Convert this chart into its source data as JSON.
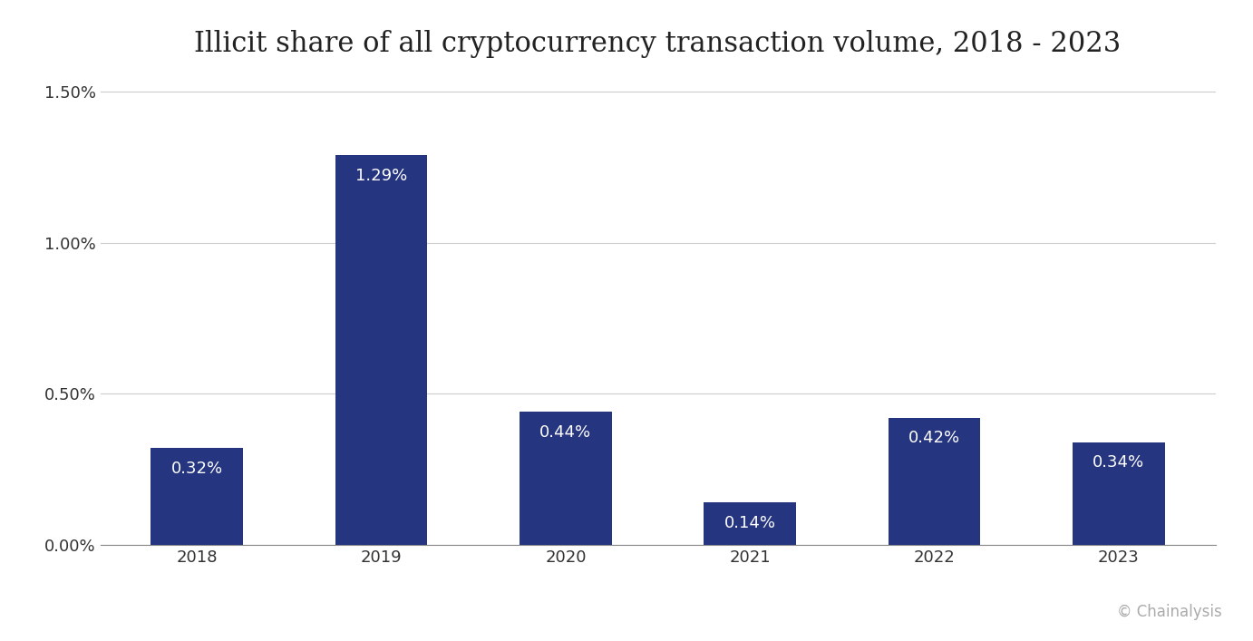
{
  "title": "Illicit share of all cryptocurrency transaction volume, 2018 - 2023",
  "categories": [
    "2018",
    "2019",
    "2020",
    "2021",
    "2022",
    "2023"
  ],
  "values": [
    0.32,
    1.29,
    0.44,
    0.14,
    0.42,
    0.34
  ],
  "bar_color": "#263580",
  "label_color": "#ffffff",
  "background_color": "#ffffff",
  "footer_background": "#111111",
  "footer_text": "© Chainalysis",
  "footer_text_color": "#aaaaaa",
  "title_fontsize": 22,
  "label_fontsize": 13,
  "tick_fontsize": 13,
  "ylim_max": 1.55,
  "ytick_values": [
    0.0,
    0.5,
    1.0,
    1.5
  ],
  "ytick_labels": [
    "0.00%",
    "0.50%",
    "1.00%",
    "1.50%"
  ],
  "grid_color": "#cccccc",
  "bar_width": 0.5
}
